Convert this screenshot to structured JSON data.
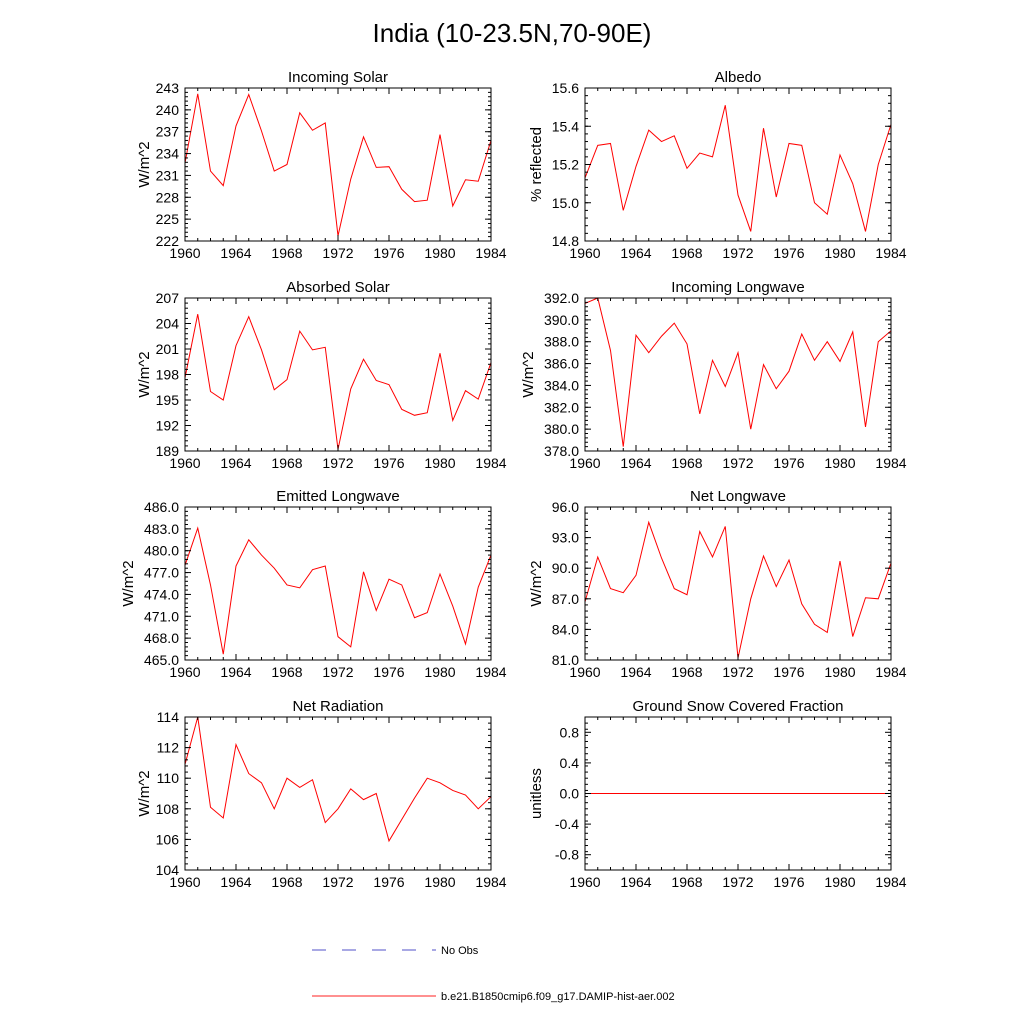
{
  "title": "India (10-23.5N,70-90E)",
  "legend": [
    {
      "label": "No Obs",
      "color": "#5050c8",
      "style": "dashed"
    },
    {
      "label": "b.e21.B1850cmip6.f09_g17.DAMIP-hist-aer.002",
      "color": "#ff2020",
      "style": "solid"
    }
  ],
  "chart_data": [
    {
      "type": "line",
      "title": "Incoming Solar",
      "ylabel": "W/m^2",
      "xlim": [
        1960,
        1984
      ],
      "xticks": [
        "1960",
        "1964",
        "1968",
        "1972",
        "1976",
        "1980",
        "1984"
      ],
      "ylim": [
        222,
        243
      ],
      "yticks": [
        "222",
        "225",
        "228",
        "231",
        "234",
        "237",
        "240",
        "243"
      ],
      "series": [
        {
          "x": [
            1960,
            1961,
            1962,
            1963,
            1964,
            1965,
            1966,
            1967,
            1968,
            1969,
            1970,
            1971,
            1972,
            1973,
            1974,
            1975,
            1976,
            1977,
            1978,
            1979,
            1980,
            1981,
            1982,
            1983,
            1984
          ],
          "values": [
            232.7,
            242.2,
            231.6,
            229.6,
            237.8,
            242.1,
            237.1,
            231.6,
            232.5,
            239.6,
            237.2,
            238.2,
            222.7,
            230.5,
            236.3,
            232.1,
            232.2,
            229.1,
            227.4,
            227.6,
            236.6,
            226.8,
            230.4,
            230.2,
            235.8
          ],
          "color": "#ff0000"
        }
      ]
    },
    {
      "type": "line",
      "title": "Albedo",
      "ylabel": "% reflected",
      "xlim": [
        1960,
        1984
      ],
      "xticks": [
        "1960",
        "1964",
        "1968",
        "1972",
        "1976",
        "1980",
        "1984"
      ],
      "ylim": [
        14.8,
        15.6
      ],
      "yticks": [
        "14.8",
        "15.0",
        "15.2",
        "15.4",
        "15.6"
      ],
      "series": [
        {
          "x": [
            1960,
            1961,
            1962,
            1963,
            1964,
            1965,
            1966,
            1967,
            1968,
            1969,
            1970,
            1971,
            1972,
            1973,
            1974,
            1975,
            1976,
            1977,
            1978,
            1979,
            1980,
            1981,
            1982,
            1983,
            1984
          ],
          "values": [
            15.13,
            15.3,
            15.31,
            14.96,
            15.19,
            15.38,
            15.32,
            15.35,
            15.18,
            15.26,
            15.24,
            15.51,
            15.04,
            14.85,
            15.39,
            15.03,
            15.31,
            15.3,
            15.0,
            14.94,
            15.25,
            15.1,
            14.85,
            15.2,
            15.41
          ],
          "color": "#ff0000"
        }
      ]
    },
    {
      "type": "line",
      "title": "Absorbed Solar",
      "ylabel": "W/m^2",
      "xlim": [
        1960,
        1984
      ],
      "xticks": [
        "1960",
        "1964",
        "1968",
        "1972",
        "1976",
        "1980",
        "1984"
      ],
      "ylim": [
        189,
        207
      ],
      "yticks": [
        "189",
        "192",
        "195",
        "198",
        "201",
        "204",
        "207"
      ],
      "series": [
        {
          "x": [
            1960,
            1961,
            1962,
            1963,
            1964,
            1965,
            1966,
            1967,
            1968,
            1969,
            1970,
            1971,
            1972,
            1973,
            1974,
            1975,
            1976,
            1977,
            1978,
            1979,
            1980,
            1981,
            1982,
            1983,
            1984
          ],
          "values": [
            197.6,
            205.1,
            196.0,
            195.0,
            201.4,
            204.8,
            200.9,
            196.2,
            197.4,
            203.1,
            200.9,
            201.2,
            189.2,
            196.3,
            199.8,
            197.3,
            196.8,
            193.9,
            193.2,
            193.5,
            200.5,
            192.6,
            196.1,
            195.1,
            199.4
          ],
          "color": "#ff0000"
        }
      ]
    },
    {
      "type": "line",
      "title": "Incoming Longwave",
      "ylabel": "W/m^2",
      "xlim": [
        1960,
        1984
      ],
      "xticks": [
        "1960",
        "1964",
        "1968",
        "1972",
        "1976",
        "1980",
        "1984"
      ],
      "ylim": [
        378.0,
        392.0
      ],
      "yticks": [
        "378.0",
        "380.0",
        "382.0",
        "384.0",
        "386.0",
        "388.0",
        "390.0",
        "392.0"
      ],
      "series": [
        {
          "x": [
            1960,
            1961,
            1962,
            1963,
            1964,
            1965,
            1966,
            1967,
            1968,
            1969,
            1970,
            1971,
            1972,
            1973,
            1974,
            1975,
            1976,
            1977,
            1978,
            1979,
            1980,
            1981,
            1982,
            1983,
            1984
          ],
          "values": [
            391.5,
            392.0,
            387.2,
            378.4,
            388.6,
            387.0,
            388.5,
            389.7,
            387.8,
            381.4,
            386.3,
            383.9,
            387.0,
            380.0,
            385.9,
            383.7,
            385.3,
            388.7,
            386.3,
            388.0,
            386.2,
            388.9,
            380.2,
            388.0,
            389.0
          ],
          "color": "#ff0000"
        }
      ]
    },
    {
      "type": "line",
      "title": "Emitted Longwave",
      "ylabel": "W/m^2",
      "xlim": [
        1960,
        1984
      ],
      "xticks": [
        "1960",
        "1964",
        "1968",
        "1972",
        "1976",
        "1980",
        "1984"
      ],
      "ylim": [
        465.0,
        486.0
      ],
      "yticks": [
        "465.0",
        "468.0",
        "471.0",
        "474.0",
        "477.0",
        "480.0",
        "483.0",
        "486.0"
      ],
      "series": [
        {
          "x": [
            1960,
            1961,
            1962,
            1963,
            1964,
            1965,
            1966,
            1967,
            1968,
            1969,
            1970,
            1971,
            1972,
            1973,
            1974,
            1975,
            1976,
            1977,
            1978,
            1979,
            1980,
            1981,
            1982,
            1983,
            1984
          ],
          "values": [
            478.0,
            483.1,
            475.3,
            465.8,
            477.9,
            481.5,
            479.4,
            477.6,
            475.3,
            474.9,
            477.4,
            477.9,
            468.2,
            466.8,
            477.1,
            471.8,
            476.1,
            475.3,
            470.8,
            471.5,
            476.8,
            472.4,
            467.2,
            475.0,
            479.4
          ],
          "color": "#ff0000"
        }
      ]
    },
    {
      "type": "line",
      "title": "Net Longwave",
      "ylabel": "W/m^2",
      "xlim": [
        1960,
        1984
      ],
      "xticks": [
        "1960",
        "1964",
        "1968",
        "1972",
        "1976",
        "1980",
        "1984"
      ],
      "ylim": [
        81.0,
        96.0
      ],
      "yticks": [
        "81.0",
        "84.0",
        "87.0",
        "90.0",
        "93.0",
        "96.0"
      ],
      "series": [
        {
          "x": [
            1960,
            1961,
            1962,
            1963,
            1964,
            1965,
            1966,
            1967,
            1968,
            1969,
            1970,
            1971,
            1972,
            1973,
            1974,
            1975,
            1976,
            1977,
            1978,
            1979,
            1980,
            1981,
            1982,
            1983,
            1984
          ],
          "values": [
            86.7,
            91.1,
            88.0,
            87.6,
            89.3,
            94.5,
            91.0,
            88.0,
            87.4,
            93.6,
            91.1,
            94.1,
            81.2,
            87.0,
            91.2,
            88.2,
            90.8,
            86.5,
            84.5,
            83.7,
            90.7,
            83.3,
            87.1,
            87.0,
            90.5
          ],
          "color": "#ff0000"
        }
      ]
    },
    {
      "type": "line",
      "title": "Net Radiation",
      "ylabel": "W/m^2",
      "xlim": [
        1960,
        1984
      ],
      "xticks": [
        "1960",
        "1964",
        "1968",
        "1972",
        "1976",
        "1980",
        "1984"
      ],
      "ylim": [
        104,
        114
      ],
      "yticks": [
        "104",
        "106",
        "108",
        "110",
        "112",
        "114"
      ],
      "series": [
        {
          "x": [
            1960,
            1961,
            1962,
            1963,
            1964,
            1965,
            1966,
            1967,
            1968,
            1969,
            1970,
            1971,
            1972,
            1973,
            1974,
            1975,
            1976,
            1977,
            1978,
            1979,
            1980,
            1981,
            1982,
            1983,
            1984
          ],
          "values": [
            110.9,
            114.0,
            108.1,
            107.4,
            112.2,
            110.3,
            109.7,
            108.0,
            110.0,
            109.4,
            109.9,
            107.1,
            108.0,
            109.3,
            108.6,
            109.0,
            105.9,
            107.3,
            108.7,
            110.0,
            109.7,
            109.2,
            108.9,
            108.0,
            108.8
          ],
          "color": "#ff0000"
        }
      ]
    },
    {
      "type": "line",
      "title": "Ground Snow Covered Fraction",
      "ylabel": "unitless",
      "xlim": [
        1960,
        1984
      ],
      "xticks": [
        "1960",
        "1964",
        "1968",
        "1972",
        "1976",
        "1980",
        "1984"
      ],
      "ylim": [
        -1.0,
        1.0
      ],
      "yticks": [
        "-0.8",
        "-0.4",
        "0.0",
        "0.4",
        "0.8"
      ],
      "series": [
        {
          "x": [
            1960,
            1961,
            1962,
            1963,
            1964,
            1965,
            1966,
            1967,
            1968,
            1969,
            1970,
            1971,
            1972,
            1973,
            1974,
            1975,
            1976,
            1977,
            1978,
            1979,
            1980,
            1981,
            1982,
            1983,
            1984
          ],
          "values": [
            0,
            0,
            0,
            0,
            0,
            0,
            0,
            0,
            0,
            0,
            0,
            0,
            0,
            0,
            0,
            0,
            0,
            0,
            0,
            0,
            0,
            0,
            0,
            0,
            0
          ],
          "color": "#ff0000"
        }
      ]
    }
  ]
}
